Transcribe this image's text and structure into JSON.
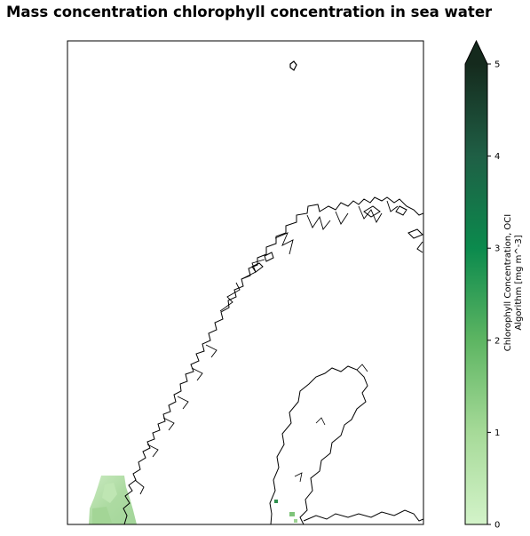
{
  "figure": {
    "title": "Mass concentration chlorophyll concentration in sea water"
  },
  "colorbar": {
    "label_line1": "Chlorophyll Concentration, OCI",
    "label_line2": "Algorithm [mg m^-3]",
    "ticks": [
      "0",
      "1",
      "2",
      "3",
      "4",
      "5"
    ],
    "min": 0,
    "max": 5,
    "extend": "max",
    "colors": [
      "#d3f3c9",
      "#a6da98",
      "#5db562",
      "#0b8a4d",
      "#1f5f45",
      "#152a1d"
    ]
  },
  "map": {
    "region": "Scandinavia",
    "coastline_color": "#000000",
    "data_color_low": "#b9e4ae",
    "data_color_mid": "#a3d596",
    "data_color_high": "#2f8f4e"
  }
}
